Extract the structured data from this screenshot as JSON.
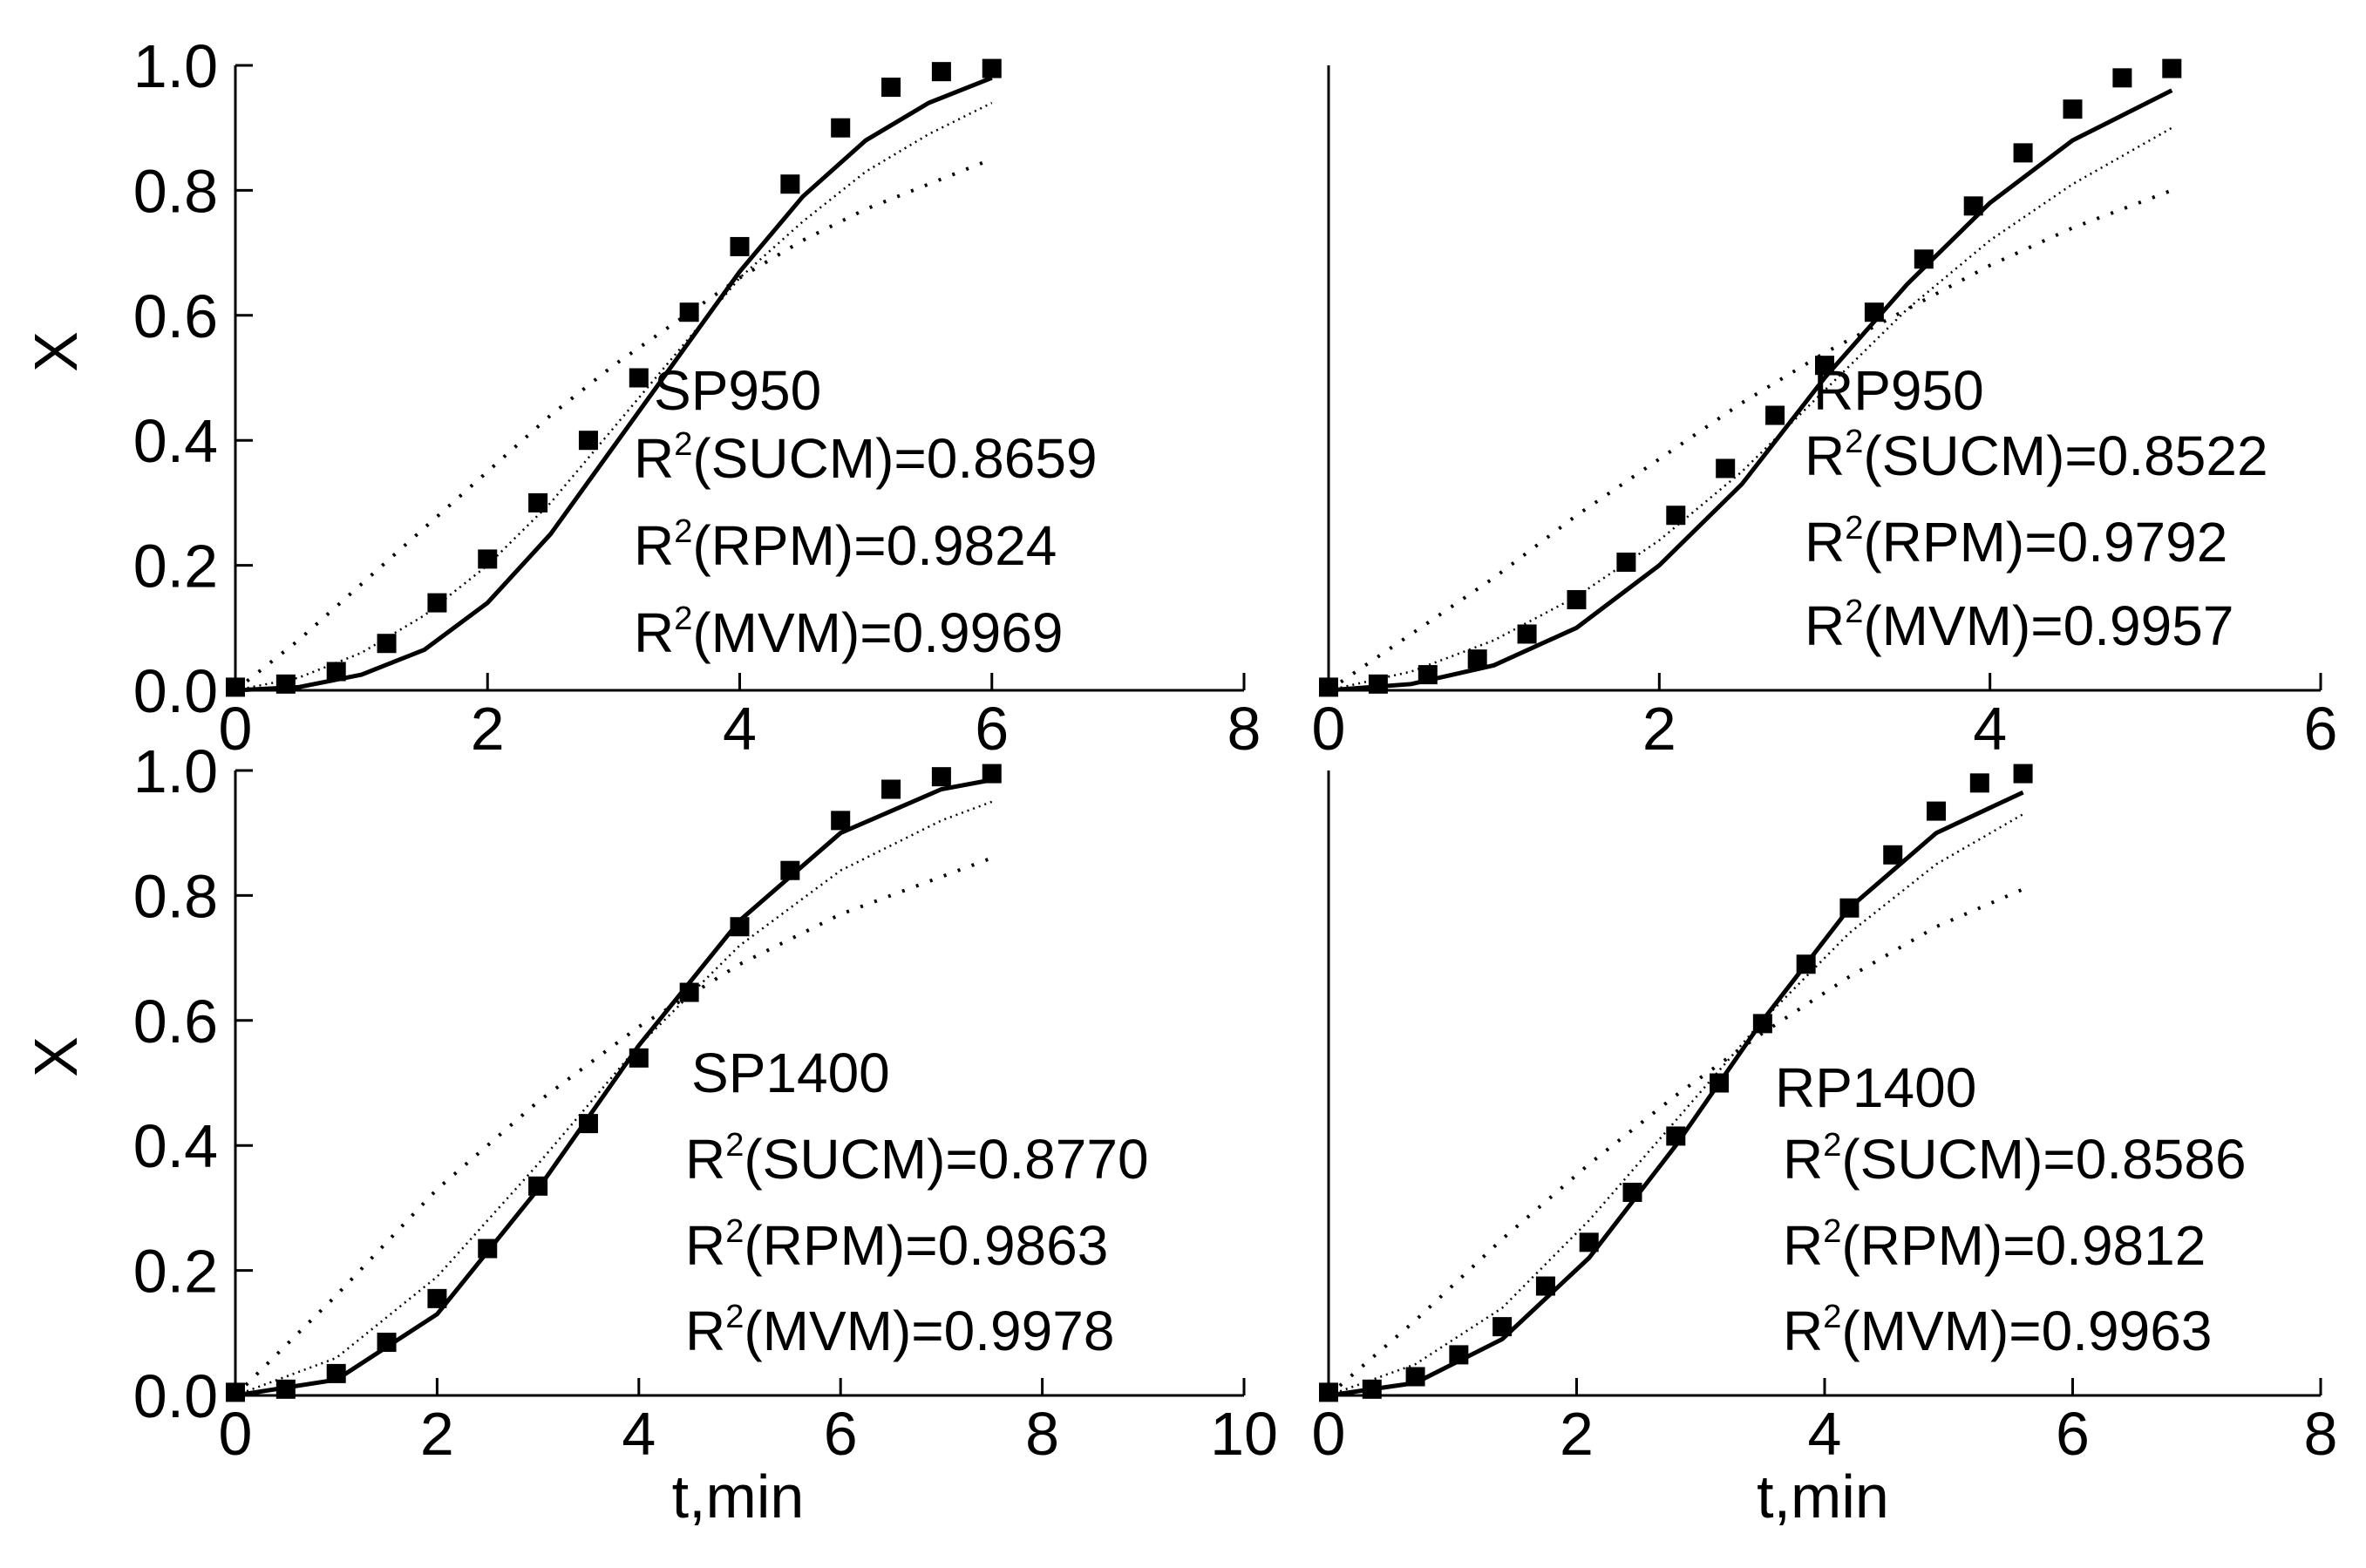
{
  "chart_data": [
    {
      "type": "line",
      "xlim": [
        0,
        8
      ],
      "xticks": [
        0,
        2,
        4,
        6,
        8
      ],
      "ylim": [
        0,
        1
      ],
      "yticks": [
        {
          "value": 0,
          "label": "0.0"
        },
        {
          "value": 0.2,
          "label": "0.2"
        },
        {
          "value": 0.4,
          "label": "0.4"
        },
        {
          "value": 0.6,
          "label": "0.6"
        },
        {
          "value": 0.8,
          "label": "0.8"
        },
        {
          "value": 1,
          "label": "1.0"
        }
      ],
      "ylabel": "X",
      "annotation": {
        "label": "SP950",
        "lines": [
          {
            "base": "R",
            "sup": "2",
            "text": "(SUCM)=0.8659"
          },
          {
            "base": "R",
            "sup": "2",
            "text": "(RPM)=0.9824"
          },
          {
            "base": "R",
            "sup": "2",
            "text": "(MVM)=0.9969"
          }
        ]
      },
      "series": [
        {
          "type": "scatter",
          "color": "#000000",
          "x": [
            0,
            0.4,
            0.8,
            1.2,
            1.6,
            2.0,
            2.4,
            2.8,
            3.2,
            3.6,
            4.0,
            4.4,
            4.8,
            5.2,
            5.6,
            6.0
          ],
          "values": [
            0.005,
            0.01,
            0.03,
            0.075,
            0.14,
            0.21,
            0.3,
            0.4,
            0.5,
            0.605,
            0.71,
            0.81,
            0.9,
            0.965,
            0.99,
            0.995
          ]
        },
        {
          "style": "solid",
          "color": "#000000",
          "x": [
            0,
            0.5,
            1,
            1.5,
            2,
            2.5,
            3,
            3.5,
            4,
            4.5,
            5,
            5.5,
            6
          ],
          "values": [
            0,
            0.005,
            0.025,
            0.065,
            0.14,
            0.25,
            0.39,
            0.53,
            0.67,
            0.79,
            0.88,
            0.94,
            0.98
          ]
        },
        {
          "style": "dotted",
          "color": "#000000",
          "x": [
            0,
            0.5,
            1,
            1.5,
            2,
            2.5,
            3,
            3.5,
            4,
            4.5,
            5,
            5.5,
            6
          ],
          "values": [
            0,
            0.02,
            0.06,
            0.12,
            0.2,
            0.3,
            0.42,
            0.54,
            0.66,
            0.75,
            0.83,
            0.89,
            0.94
          ]
        },
        {
          "style": "sparse-dotted",
          "color": "#000000",
          "x": [
            0,
            0.5,
            1,
            1.5,
            2,
            2.5,
            3,
            3.5,
            4,
            4.5,
            5,
            5.5,
            6
          ],
          "values": [
            0,
            0.08,
            0.17,
            0.26,
            0.35,
            0.44,
            0.52,
            0.59,
            0.66,
            0.72,
            0.77,
            0.81,
            0.85
          ]
        }
      ]
    },
    {
      "type": "line",
      "xlim": [
        0,
        6
      ],
      "xticks": [
        0,
        2,
        4,
        6
      ],
      "ylim": [
        0,
        1
      ],
      "annotation": {
        "label": "RP950",
        "lines": [
          {
            "base": "R",
            "sup": "2",
            "text": "(SUCM)=0.8522"
          },
          {
            "base": "R",
            "sup": "2",
            "text": "(RPM)=0.9792"
          },
          {
            "base": "R",
            "sup": "2",
            "text": "(MVM)=0.9957"
          }
        ]
      },
      "series": [
        {
          "type": "scatter",
          "color": "#000000",
          "x": [
            0,
            0.3,
            0.6,
            0.9,
            1.2,
            1.5,
            1.8,
            2.1,
            2.4,
            2.7,
            3.0,
            3.3,
            3.6,
            3.9,
            4.2,
            4.5,
            4.8,
            5.1
          ],
          "values": [
            0.005,
            0.01,
            0.025,
            0.05,
            0.09,
            0.145,
            0.205,
            0.28,
            0.355,
            0.44,
            0.52,
            0.605,
            0.69,
            0.775,
            0.86,
            0.93,
            0.98,
            0.995
          ]
        },
        {
          "style": "solid",
          "color": "#000000",
          "x": [
            0,
            0.5,
            1,
            1.5,
            2,
            2.5,
            3,
            3.5,
            4,
            4.5,
            5.1
          ],
          "values": [
            0,
            0.01,
            0.04,
            0.1,
            0.2,
            0.33,
            0.5,
            0.65,
            0.78,
            0.88,
            0.96
          ]
        },
        {
          "style": "dotted",
          "color": "#000000",
          "x": [
            0,
            0.5,
            1,
            1.5,
            2,
            2.5,
            3,
            3.5,
            4,
            4.5,
            5.1
          ],
          "values": [
            0,
            0.03,
            0.08,
            0.15,
            0.24,
            0.35,
            0.48,
            0.61,
            0.72,
            0.81,
            0.9
          ]
        },
        {
          "style": "sparse-dotted",
          "color": "#000000",
          "x": [
            0,
            0.5,
            1,
            1.5,
            2,
            2.5,
            3,
            3.5,
            4,
            4.5,
            5.1
          ],
          "values": [
            0,
            0.09,
            0.18,
            0.28,
            0.37,
            0.46,
            0.54,
            0.61,
            0.68,
            0.74,
            0.8
          ]
        }
      ]
    },
    {
      "type": "line",
      "xlim": [
        0,
        10
      ],
      "xticks": [
        0,
        2,
        4,
        6,
        8,
        10
      ],
      "ylim": [
        0,
        1
      ],
      "yticks": [
        {
          "value": 0,
          "label": "0.0"
        },
        {
          "value": 0.2,
          "label": "0.2"
        },
        {
          "value": 0.4,
          "label": "0.4"
        },
        {
          "value": 0.6,
          "label": "0.6"
        },
        {
          "value": 0.8,
          "label": "0.8"
        },
        {
          "value": 1,
          "label": "1.0"
        }
      ],
      "ylabel": "X",
      "xlabel": "t,min",
      "annotation": {
        "label": "SP1400",
        "lines": [
          {
            "base": "R",
            "sup": "2",
            "text": "(SUCM)=0.8770"
          },
          {
            "base": "R",
            "sup": "2",
            "text": "(RPM)=0.9863"
          },
          {
            "base": "R",
            "sup": "2",
            "text": "(MVM)=0.9978"
          }
        ]
      },
      "series": [
        {
          "type": "scatter",
          "color": "#000000",
          "x": [
            0,
            0.5,
            1,
            1.5,
            2,
            2.5,
            3,
            3.5,
            4,
            4.5,
            5,
            5.5,
            6,
            6.5,
            7,
            7.5
          ],
          "values": [
            0.005,
            0.01,
            0.035,
            0.085,
            0.155,
            0.235,
            0.335,
            0.435,
            0.54,
            0.645,
            0.75,
            0.84,
            0.92,
            0.97,
            0.99,
            0.995
          ]
        },
        {
          "style": "solid",
          "color": "#000000",
          "x": [
            0,
            1,
            2,
            3,
            4,
            5,
            6,
            7,
            7.5
          ],
          "values": [
            0,
            0.025,
            0.13,
            0.33,
            0.56,
            0.76,
            0.9,
            0.97,
            0.985
          ]
        },
        {
          "style": "dotted",
          "color": "#000000",
          "x": [
            0,
            1,
            2,
            3,
            4,
            5,
            6,
            7,
            7.5
          ],
          "values": [
            0,
            0.06,
            0.19,
            0.37,
            0.56,
            0.72,
            0.84,
            0.92,
            0.95
          ]
        },
        {
          "style": "sparse-dotted",
          "color": "#000000",
          "x": [
            0,
            1,
            2,
            3,
            4,
            5,
            6,
            7,
            7.5
          ],
          "values": [
            0,
            0.16,
            0.33,
            0.47,
            0.59,
            0.69,
            0.77,
            0.83,
            0.86
          ]
        }
      ]
    },
    {
      "type": "line",
      "xlim": [
        0,
        8
      ],
      "xticks": [
        0,
        2,
        4,
        6,
        8
      ],
      "ylim": [
        0,
        1
      ],
      "xlabel": "t,min",
      "annotation": {
        "label": "RP1400",
        "lines": [
          {
            "base": "R",
            "sup": "2",
            "text": "(SUCM)=0.8586"
          },
          {
            "base": "R",
            "sup": "2",
            "text": "(RPM)=0.9812"
          },
          {
            "base": "R",
            "sup": "2",
            "text": "(MVM)=0.9963"
          }
        ]
      },
      "series": [
        {
          "type": "scatter",
          "color": "#000000",
          "x": [
            0,
            0.35,
            0.7,
            1.05,
            1.4,
            1.75,
            2.1,
            2.45,
            2.8,
            3.15,
            3.5,
            3.85,
            4.2,
            4.55,
            4.9,
            5.25,
            5.6
          ],
          "values": [
            0.005,
            0.01,
            0.03,
            0.065,
            0.11,
            0.175,
            0.245,
            0.325,
            0.415,
            0.5,
            0.595,
            0.69,
            0.78,
            0.865,
            0.935,
            0.98,
            0.995
          ]
        },
        {
          "style": "solid",
          "color": "#000000",
          "x": [
            0,
            0.7,
            1.4,
            2.1,
            2.8,
            3.5,
            4.2,
            4.9,
            5.6
          ],
          "values": [
            0,
            0.02,
            0.09,
            0.22,
            0.4,
            0.6,
            0.78,
            0.9,
            0.965
          ]
        },
        {
          "style": "dotted",
          "color": "#000000",
          "x": [
            0,
            0.7,
            1.4,
            2.1,
            2.8,
            3.5,
            4.2,
            4.9,
            5.6
          ],
          "values": [
            0,
            0.05,
            0.14,
            0.28,
            0.44,
            0.6,
            0.74,
            0.85,
            0.93
          ]
        },
        {
          "style": "sparse-dotted",
          "color": "#000000",
          "x": [
            0,
            0.7,
            1.4,
            2.1,
            2.8,
            3.5,
            4.2,
            4.9,
            5.6
          ],
          "values": [
            0,
            0.12,
            0.25,
            0.37,
            0.48,
            0.58,
            0.67,
            0.75,
            0.81
          ]
        }
      ]
    }
  ]
}
